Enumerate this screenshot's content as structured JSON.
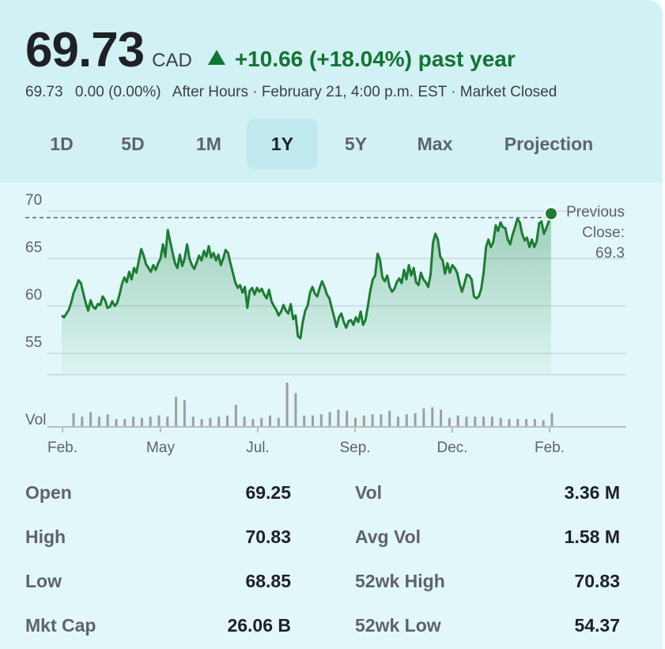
{
  "quote": {
    "price": "69.73",
    "currency": "CAD",
    "change_text": "+10.66 (+18.04%) past year",
    "after_hours_price": "69.73",
    "after_hours_change": "0.00 (0.00%)",
    "after_hours_info": "After Hours · February 21, 4:00 p.m. EST · Market Closed",
    "colors": {
      "up": "#137333",
      "line": "#1e7c34"
    }
  },
  "tabs": [
    {
      "label": "1D",
      "active": false
    },
    {
      "label": "5D",
      "active": false
    },
    {
      "label": "1M",
      "active": false
    },
    {
      "label": "1Y",
      "active": true
    },
    {
      "label": "5Y",
      "active": false
    },
    {
      "label": "Max",
      "active": false
    },
    {
      "label": "Projection",
      "active": false
    }
  ],
  "chart_data": {
    "type": "line",
    "ylim": [
      52.5,
      71
    ],
    "y_ticks": [
      "70",
      "65",
      "60",
      "55"
    ],
    "x_ticks": [
      "Feb.",
      "May",
      "Jul.",
      "Sep.",
      "Dec.",
      "Feb."
    ],
    "previous_close": {
      "label": "Previous Close:",
      "value": "69.3"
    },
    "volume_label": "Vol",
    "series": [
      {
        "values": [
          59.0,
          58.8,
          59.2,
          59.6,
          60.4,
          61.4,
          62.0,
          62.7,
          62.4,
          61.3,
          60.3,
          59.5,
          60.6,
          59.9,
          59.7,
          60.2,
          60.1,
          61.0,
          60.6,
          59.8,
          59.9,
          60.5,
          60.0,
          60.3,
          61.2,
          62.3,
          63.0,
          62.5,
          63.6,
          62.8,
          64.0,
          63.5,
          64.8,
          66.0,
          65.3,
          64.4,
          64.0,
          63.6,
          64.3,
          63.8,
          64.5,
          65.0,
          66.5,
          65.2,
          68.0,
          66.8,
          65.6,
          64.5,
          64.0,
          65.4,
          64.2,
          65.0,
          66.5,
          65.0,
          64.3,
          63.9,
          64.6,
          65.3,
          64.8,
          65.8,
          65.2,
          66.3,
          65.1,
          65.6,
          64.8,
          65.4,
          64.3,
          65.0,
          65.9,
          65.6,
          64.5,
          63.5,
          62.5,
          61.9,
          62.2,
          61.4,
          62.0,
          59.8,
          61.6,
          61.9,
          61.2,
          61.9,
          61.5,
          61.8,
          61.2,
          60.8,
          61.7,
          60.5,
          60.0,
          59.6,
          59.0,
          59.4,
          60.1,
          59.5,
          59.2,
          60.2,
          58.6,
          59.0,
          56.8,
          56.6,
          58.3,
          59.5,
          60.0,
          61.4,
          62.0,
          61.3,
          61.0,
          61.9,
          62.6,
          62.0,
          61.2,
          60.8,
          59.8,
          58.8,
          57.8,
          58.8,
          59.2,
          58.3,
          57.7,
          58.4,
          58.5,
          58.0,
          58.8,
          58.3,
          59.4,
          58.0,
          58.5,
          60.0,
          61.6,
          62.8,
          63.2,
          65.5,
          64.9,
          63.0,
          62.6,
          63.2,
          62.0,
          61.5,
          61.8,
          62.5,
          62.9,
          62.4,
          63.8,
          62.8,
          64.3,
          63.2,
          64.0,
          62.5,
          62.2,
          63.5,
          62.8,
          62.5,
          62.0,
          63.3,
          66.7,
          67.6,
          67.0,
          65.2,
          64.8,
          63.4,
          64.5,
          63.5,
          64.3,
          64.0,
          63.5,
          62.4,
          61.5,
          62.3,
          63.3,
          63.2,
          62.8,
          61.0,
          60.8,
          61.0,
          61.8,
          63.5,
          66.2,
          67.0,
          66.2,
          66.7,
          68.5,
          67.9,
          68.8,
          68.3,
          68.2,
          67.0,
          66.5,
          67.5,
          68.3,
          69.2,
          68.8,
          67.6,
          66.9,
          67.2,
          66.2,
          67.0,
          66.2,
          66.8,
          68.7,
          68.9,
          67.6,
          68.2,
          68.9,
          69.73
        ]
      }
    ],
    "volume": [
      1.1,
      0.8,
      1.2,
      0.8,
      1.0,
      0.6,
      0.6,
      0.8,
      0.7,
      0.8,
      0.9,
      0.8,
      2.5,
      2.2,
      0.8,
      0.6,
      0.7,
      0.8,
      0.9,
      1.8,
      0.8,
      0.6,
      0.7,
      0.9,
      0.7,
      3.7,
      2.8,
      0.9,
      0.9,
      1.0,
      1.2,
      1.4,
      1.3,
      0.7,
      0.9,
      1.0,
      1.0,
      1.3,
      0.8,
      1.0,
      1.1,
      1.5,
      1.6,
      1.4,
      0.7,
      0.9,
      0.8,
      0.8,
      0.8,
      0.8,
      0.7,
      0.6,
      0.6,
      0.6,
      0.6,
      0.5,
      1.1
    ]
  },
  "stats": {
    "left": [
      {
        "label": "Open",
        "value": "69.25"
      },
      {
        "label": "High",
        "value": "70.83"
      },
      {
        "label": "Low",
        "value": "68.85"
      },
      {
        "label": "Mkt Cap",
        "value": "26.06 B"
      }
    ],
    "right": [
      {
        "label": "Vol",
        "value": "3.36 M"
      },
      {
        "label": "Avg Vol",
        "value": "1.58 M"
      },
      {
        "label": "52wk High",
        "value": "70.83"
      },
      {
        "label": "52wk Low",
        "value": "54.37"
      }
    ]
  }
}
